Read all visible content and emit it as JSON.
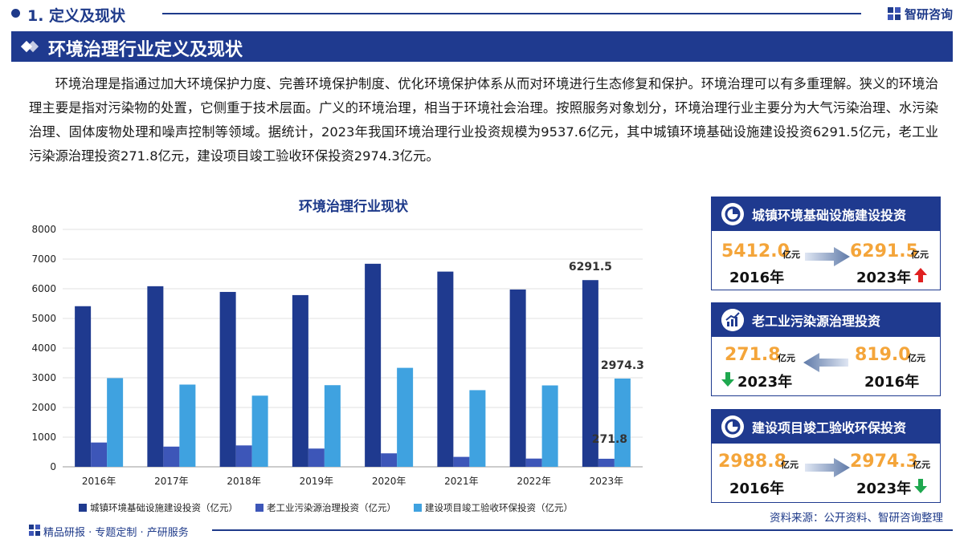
{
  "section": {
    "title": "1. 定义及现状"
  },
  "brand": {
    "name": "智研咨询"
  },
  "banner": {
    "title": "环境治理行业定义及现状"
  },
  "paragraph": "环境治理是指通过加大环境保护力度、完善环境保护制度、优化环境保护体系从而对环境进行生态修复和保护。环境治理可以有多重理解。狭义的环境治理主要是指对污染物的处置，它侧重于技术层面。广义的环境治理，相当于环境社会治理。按照服务对象划分，环境治理行业主要分为大气污染治理、水污染治理、固体废物处理和噪声控制等领域。据统计，2023年我国环境治理行业投资规模为9537.6亿元，其中城镇环境基础设施建设投资6291.5亿元，老工业污染源治理投资271.8亿元，建设项目竣工验收环保投资2974.3亿元。",
  "chart_data": {
    "type": "bar",
    "title": "环境治理行业现状",
    "categories": [
      "2016年",
      "2017年",
      "2018年",
      "2019年",
      "2020年",
      "2021年",
      "2022年",
      "2023年"
    ],
    "ylim": [
      0,
      8000
    ],
    "yticks": [
      0,
      1000,
      2000,
      3000,
      4000,
      5000,
      6000,
      7000,
      8000
    ],
    "series": [
      {
        "name": "城镇环境基础设施建设投资（亿元）",
        "color": "#1f3a8f",
        "values": [
          5412.0,
          6085,
          5893,
          5786,
          6842,
          6578,
          5975,
          6291.5
        ]
      },
      {
        "name": "老工业污染源治理投资（亿元）",
        "color": "#3d56b8",
        "values": [
          819.0,
          681,
          721,
          615,
          454,
          335,
          278,
          271.8
        ]
      },
      {
        "name": "建设项目竣工验收环保投资（亿元）",
        "color": "#3fa2e0",
        "values": [
          2988.8,
          2771,
          2398,
          2751,
          3335,
          2583,
          2743,
          2974.3
        ]
      }
    ],
    "data_labels": [
      "6291.5",
      "271.8",
      "2974.3"
    ],
    "legend": "bottom"
  },
  "cards": [
    {
      "title": "城镇环境基础设施建设投资",
      "icon": "pie-chart-icon",
      "left": {
        "value": "5412.0",
        "unit": "亿元",
        "year": "2016年"
      },
      "right": {
        "value": "6291.5",
        "unit": "亿元",
        "year": "2023年"
      },
      "trend": "up",
      "trend_color": "#e02020"
    },
    {
      "title": "老工业污染源治理投资",
      "icon": "line-chart-icon",
      "left": {
        "value": "271.8",
        "unit": "亿元",
        "year": "2023年"
      },
      "right": {
        "value": "819.0",
        "unit": "亿元",
        "year": "2016年"
      },
      "trend": "down",
      "trend_color": "#1fa84f"
    },
    {
      "title": "建设项目竣工验收环保投资",
      "icon": "pie-chart-icon",
      "left": {
        "value": "2988.8",
        "unit": "亿元",
        "year": "2016年"
      },
      "right": {
        "value": "2974.3",
        "unit": "亿元",
        "year": "2023年"
      },
      "trend": "down",
      "trend_color": "#1fa84f"
    }
  ],
  "source": "资料来源：公开资料、智研咨询整理",
  "footer": {
    "text": "精品研报 · 专题定制 · 产研服务"
  },
  "colors": {
    "primary": "#1f3a8f",
    "accent_orange": "#f4a53a"
  }
}
